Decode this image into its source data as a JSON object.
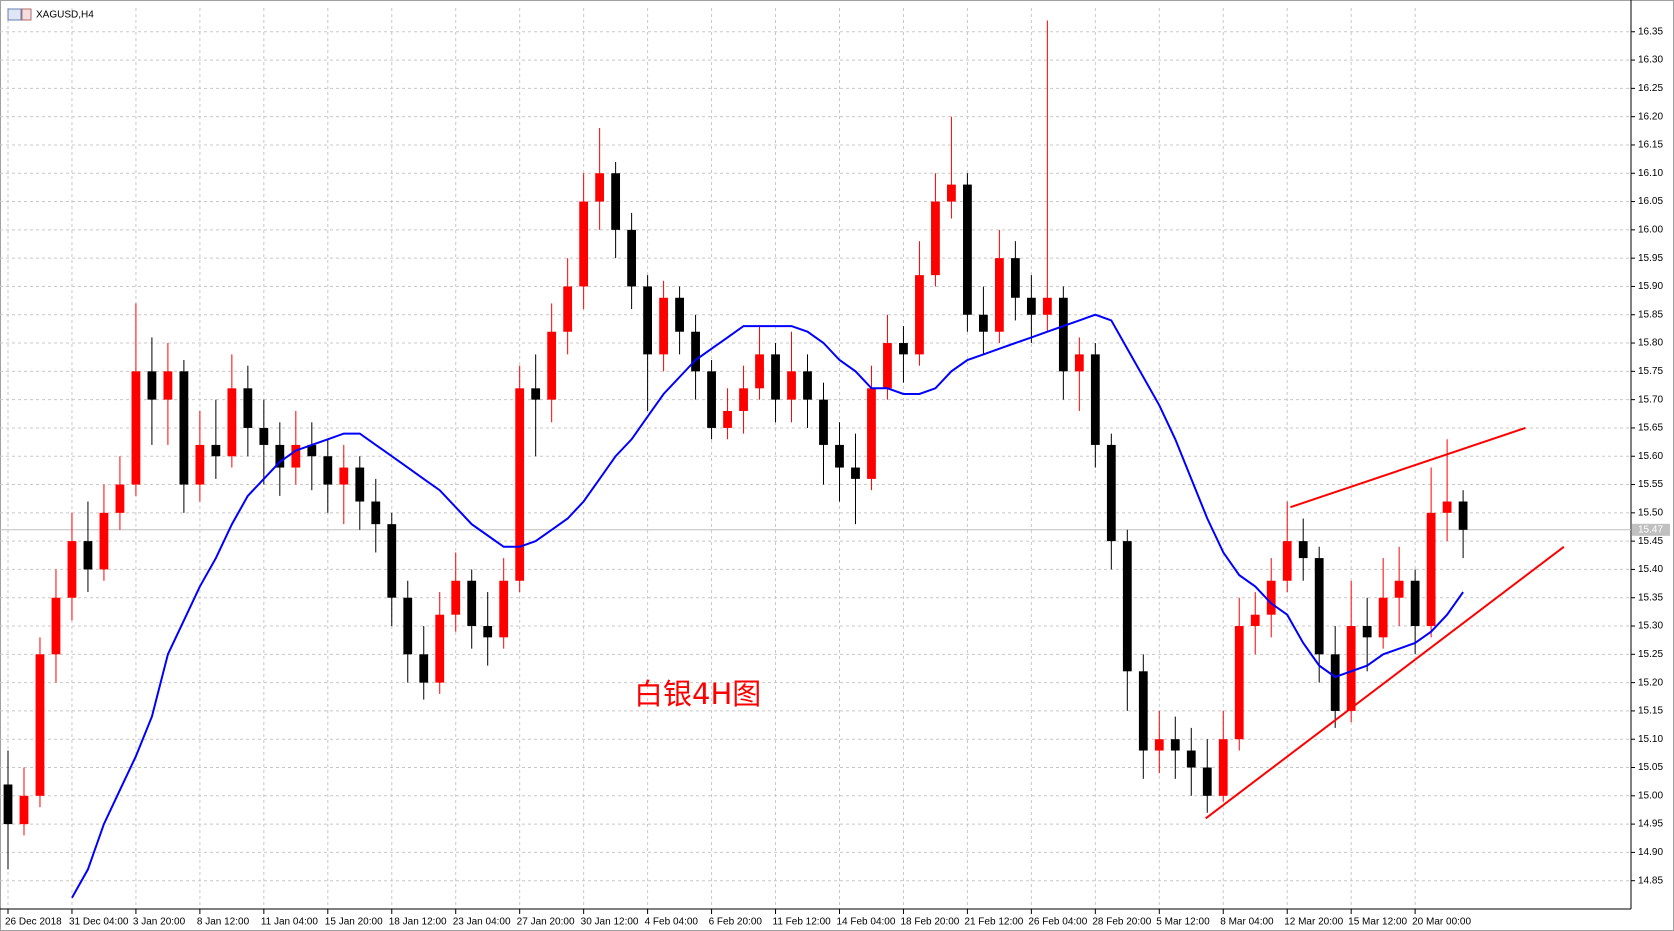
{
  "chart_data": {
    "type": "candlestick",
    "title": "XAGUSD,H4",
    "annotation": "白银4H图",
    "up_color": "#ff0000",
    "down_color": "#000000",
    "grid": true,
    "xlim": [
      -0.5,
      101.5
    ],
    "ylim": [
      14.8,
      16.392
    ],
    "xticks": [
      {
        "value": 0,
        "label": "26 Dec 2018"
      },
      {
        "value": 4,
        "label": "31 Dec 04:00"
      },
      {
        "value": 8,
        "label": "3 Jan 20:00"
      },
      {
        "value": 12,
        "label": "8 Jan 12:00"
      },
      {
        "value": 16,
        "label": "11 Jan 04:00"
      },
      {
        "value": 20,
        "label": "15 Jan 20:00"
      },
      {
        "value": 24,
        "label": "18 Jan 12:00"
      },
      {
        "value": 28,
        "label": "23 Jan 04:00"
      },
      {
        "value": 32,
        "label": "27 Jan 20:00"
      },
      {
        "value": 36,
        "label": "30 Jan 12:00"
      },
      {
        "value": 40,
        "label": "4 Feb 04:00"
      },
      {
        "value": 44,
        "label": "6 Feb 20:00"
      },
      {
        "value": 48,
        "label": "11 Feb 12:00"
      },
      {
        "value": 52,
        "label": "14 Feb 04:00"
      },
      {
        "value": 56,
        "label": "18 Feb 20:00"
      },
      {
        "value": 60,
        "label": "21 Feb 12:00"
      },
      {
        "value": 64,
        "label": "26 Feb 04:00"
      },
      {
        "value": 68,
        "label": "28 Feb 20:00"
      },
      {
        "value": 72,
        "label": "5 Mar 12:00"
      },
      {
        "value": 76,
        "label": "8 Mar 04:00"
      },
      {
        "value": 80,
        "label": "12 Mar 20:00"
      },
      {
        "value": 84,
        "label": "15 Mar 12:00"
      },
      {
        "value": 88,
        "label": "20 Mar 00:00"
      }
    ],
    "yticks": [
      {
        "value": 14.85,
        "label": "14.85"
      },
      {
        "value": 14.9,
        "label": "14.90"
      },
      {
        "value": 14.95,
        "label": "14.95"
      },
      {
        "value": 15.0,
        "label": "15.00"
      },
      {
        "value": 15.05,
        "label": "15.05"
      },
      {
        "value": 15.1,
        "label": "15.10"
      },
      {
        "value": 15.15,
        "label": "15.15"
      },
      {
        "value": 15.2,
        "label": "15.20"
      },
      {
        "value": 15.25,
        "label": "15.25"
      },
      {
        "value": 15.3,
        "label": "15.30"
      },
      {
        "value": 15.35,
        "label": "15.35"
      },
      {
        "value": 15.4,
        "label": "15.40"
      },
      {
        "value": 15.45,
        "label": "15.45"
      },
      {
        "value": 15.5,
        "label": "15.50"
      },
      {
        "value": 15.55,
        "label": "15.55"
      },
      {
        "value": 15.6,
        "label": "15.60"
      },
      {
        "value": 15.65,
        "label": "15.65"
      },
      {
        "value": 15.7,
        "label": "15.70"
      },
      {
        "value": 15.75,
        "label": "15.75"
      },
      {
        "value": 15.8,
        "label": "15.80"
      },
      {
        "value": 15.85,
        "label": "15.85"
      },
      {
        "value": 15.9,
        "label": "15.90"
      },
      {
        "value": 15.95,
        "label": "15.95"
      },
      {
        "value": 16.0,
        "label": "16.00"
      },
      {
        "value": 16.05,
        "label": "16.05"
      },
      {
        "value": 16.1,
        "label": "16.10"
      },
      {
        "value": 16.15,
        "label": "16.15"
      },
      {
        "value": 16.2,
        "label": "16.20"
      },
      {
        "value": 16.25,
        "label": "16.25"
      },
      {
        "value": 16.3,
        "label": "16.30"
      },
      {
        "value": 16.35,
        "label": "16.35"
      }
    ],
    "current_price": {
      "value": 15.47,
      "label": "15.47"
    },
    "candles": [
      [
        15.02,
        15.08,
        14.87,
        14.95
      ],
      [
        14.95,
        15.05,
        14.93,
        15.0
      ],
      [
        15.0,
        15.28,
        14.98,
        15.25
      ],
      [
        15.25,
        15.4,
        15.2,
        15.35
      ],
      [
        15.35,
        15.5,
        15.31,
        15.45
      ],
      [
        15.45,
        15.52,
        15.36,
        15.4
      ],
      [
        15.4,
        15.55,
        15.38,
        15.5
      ],
      [
        15.5,
        15.6,
        15.47,
        15.55
      ],
      [
        15.55,
        15.87,
        15.53,
        15.75
      ],
      [
        15.75,
        15.81,
        15.62,
        15.7
      ],
      [
        15.7,
        15.8,
        15.62,
        15.75
      ],
      [
        15.75,
        15.77,
        15.5,
        15.55
      ],
      [
        15.55,
        15.68,
        15.52,
        15.62
      ],
      [
        15.62,
        15.7,
        15.56,
        15.6
      ],
      [
        15.6,
        15.78,
        15.58,
        15.72
      ],
      [
        15.72,
        15.76,
        15.6,
        15.65
      ],
      [
        15.65,
        15.7,
        15.55,
        15.62
      ],
      [
        15.62,
        15.66,
        15.53,
        15.58
      ],
      [
        15.58,
        15.68,
        15.55,
        15.62
      ],
      [
        15.62,
        15.66,
        15.54,
        15.6
      ],
      [
        15.6,
        15.63,
        15.5,
        15.55
      ],
      [
        15.55,
        15.62,
        15.48,
        15.58
      ],
      [
        15.58,
        15.6,
        15.47,
        15.52
      ],
      [
        15.52,
        15.56,
        15.43,
        15.48
      ],
      [
        15.48,
        15.5,
        15.3,
        15.35
      ],
      [
        15.35,
        15.38,
        15.2,
        15.25
      ],
      [
        15.25,
        15.3,
        15.17,
        15.2
      ],
      [
        15.2,
        15.36,
        15.18,
        15.32
      ],
      [
        15.32,
        15.43,
        15.29,
        15.38
      ],
      [
        15.38,
        15.4,
        15.26,
        15.3
      ],
      [
        15.3,
        15.36,
        15.23,
        15.28
      ],
      [
        15.28,
        15.42,
        15.26,
        15.38
      ],
      [
        15.38,
        15.76,
        15.36,
        15.72
      ],
      [
        15.72,
        15.78,
        15.6,
        15.7
      ],
      [
        15.7,
        15.87,
        15.66,
        15.82
      ],
      [
        15.82,
        15.95,
        15.78,
        15.9
      ],
      [
        15.9,
        16.1,
        15.86,
        16.05
      ],
      [
        16.05,
        16.18,
        16.0,
        16.1
      ],
      [
        16.1,
        16.12,
        15.95,
        16.0
      ],
      [
        16.0,
        16.03,
        15.86,
        15.9
      ],
      [
        15.9,
        15.92,
        15.68,
        15.78
      ],
      [
        15.78,
        15.91,
        15.75,
        15.88
      ],
      [
        15.88,
        15.9,
        15.78,
        15.82
      ],
      [
        15.82,
        15.85,
        15.7,
        15.75
      ],
      [
        15.75,
        15.77,
        15.63,
        15.65
      ],
      [
        15.65,
        15.72,
        15.63,
        15.68
      ],
      [
        15.68,
        15.76,
        15.64,
        15.72
      ],
      [
        15.72,
        15.83,
        15.7,
        15.78
      ],
      [
        15.78,
        15.8,
        15.66,
        15.7
      ],
      [
        15.7,
        15.82,
        15.66,
        15.75
      ],
      [
        15.75,
        15.78,
        15.65,
        15.7
      ],
      [
        15.7,
        15.73,
        15.55,
        15.62
      ],
      [
        15.62,
        15.66,
        15.52,
        15.58
      ],
      [
        15.58,
        15.64,
        15.48,
        15.56
      ],
      [
        15.56,
        15.76,
        15.54,
        15.72
      ],
      [
        15.72,
        15.85,
        15.7,
        15.8
      ],
      [
        15.8,
        15.83,
        15.73,
        15.78
      ],
      [
        15.78,
        15.98,
        15.76,
        15.92
      ],
      [
        15.92,
        16.1,
        15.9,
        16.05
      ],
      [
        16.05,
        16.2,
        16.02,
        16.08
      ],
      [
        16.08,
        16.1,
        15.82,
        15.85
      ],
      [
        15.85,
        15.9,
        15.78,
        15.82
      ],
      [
        15.82,
        16.0,
        15.8,
        15.95
      ],
      [
        15.95,
        15.98,
        15.84,
        15.88
      ],
      [
        15.88,
        15.92,
        15.8,
        15.85
      ],
      [
        15.85,
        16.37,
        15.82,
        15.88
      ],
      [
        15.88,
        15.9,
        15.7,
        15.75
      ],
      [
        15.75,
        15.81,
        15.68,
        15.78
      ],
      [
        15.78,
        15.8,
        15.58,
        15.62
      ],
      [
        15.62,
        15.64,
        15.4,
        15.45
      ],
      [
        15.45,
        15.47,
        15.15,
        15.22
      ],
      [
        15.22,
        15.25,
        15.03,
        15.08
      ],
      [
        15.08,
        15.15,
        15.04,
        15.1
      ],
      [
        15.1,
        15.14,
        15.03,
        15.08
      ],
      [
        15.08,
        15.12,
        15.0,
        15.05
      ],
      [
        15.05,
        15.1,
        14.97,
        15.0
      ],
      [
        15.0,
        15.15,
        14.99,
        15.1
      ],
      [
        15.1,
        15.35,
        15.08,
        15.3
      ],
      [
        15.3,
        15.36,
        15.25,
        15.32
      ],
      [
        15.32,
        15.42,
        15.28,
        15.38
      ],
      [
        15.38,
        15.52,
        15.36,
        15.45
      ],
      [
        15.45,
        15.49,
        15.38,
        15.42
      ],
      [
        15.42,
        15.44,
        15.2,
        15.25
      ],
      [
        15.25,
        15.3,
        15.12,
        15.15
      ],
      [
        15.15,
        15.38,
        15.13,
        15.3
      ],
      [
        15.3,
        15.35,
        15.22,
        15.28
      ],
      [
        15.28,
        15.42,
        15.26,
        15.35
      ],
      [
        15.35,
        15.44,
        15.3,
        15.38
      ],
      [
        15.38,
        15.4,
        15.25,
        15.3
      ],
      [
        15.3,
        15.58,
        15.28,
        15.5
      ],
      [
        15.5,
        15.63,
        15.45,
        15.52
      ],
      [
        15.52,
        15.54,
        15.42,
        15.47
      ]
    ],
    "moving_average": {
      "color": "#0000ff",
      "values": [
        null,
        null,
        null,
        null,
        14.82,
        14.87,
        14.95,
        15.01,
        15.07,
        15.14,
        15.25,
        15.31,
        15.37,
        15.42,
        15.48,
        15.53,
        15.56,
        15.59,
        15.61,
        15.62,
        15.63,
        15.64,
        15.64,
        15.62,
        15.6,
        15.58,
        15.56,
        15.54,
        15.51,
        15.48,
        15.46,
        15.44,
        15.44,
        15.45,
        15.47,
        15.49,
        15.52,
        15.56,
        15.6,
        15.63,
        15.67,
        15.71,
        15.74,
        15.77,
        15.79,
        15.81,
        15.83,
        15.83,
        15.83,
        15.83,
        15.82,
        15.8,
        15.77,
        15.75,
        15.72,
        15.72,
        15.71,
        15.71,
        15.72,
        15.75,
        15.77,
        15.78,
        15.79,
        15.8,
        15.81,
        15.82,
        15.83,
        15.84,
        15.85,
        15.84,
        15.79,
        15.74,
        15.69,
        15.63,
        15.56,
        15.49,
        15.43,
        15.39,
        15.37,
        15.34,
        15.32,
        15.27,
        15.23,
        15.21,
        15.22,
        15.23,
        15.25,
        15.26,
        15.27,
        15.29,
        15.32,
        15.36
      ]
    },
    "trend_lines": [
      {
        "color": "#ff0000",
        "x": [
          74.9,
          97.3
        ],
        "y": [
          14.96,
          15.44
        ]
      },
      {
        "color": "#ff0000",
        "x": [
          80.2,
          94.9
        ],
        "y": [
          15.51,
          15.65
        ]
      }
    ]
  }
}
